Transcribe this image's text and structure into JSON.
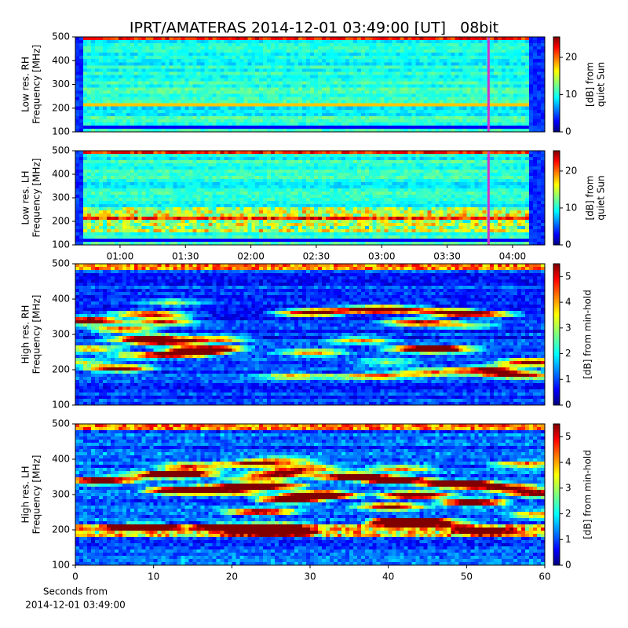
{
  "chart_data": [
    {
      "type": "heatmap",
      "title": "IPRT/AMATERAS 2014-12-01 03:49:00 [UT]   08bit",
      "ylabel": [
        "Low res. RH",
        "Frequency [MHz]"
      ],
      "ylim": [
        100,
        500
      ],
      "yticks": [
        100,
        200,
        300,
        400,
        500
      ],
      "xlim": [
        39.5,
        254.8
      ],
      "marker_x": 229,
      "marker_color": "#cc33cc",
      "colorbar": {
        "label": [
          "[dB] from",
          "quiet Sun"
        ],
        "lim": [
          0,
          25.5
        ],
        "ticks": [
          0,
          10,
          20
        ]
      }
    },
    {
      "type": "heatmap",
      "ylabel": [
        "Low res. LH",
        "Frequency [MHz]"
      ],
      "ylim": [
        100,
        500
      ],
      "yticks": [
        100,
        200,
        300,
        400,
        500
      ],
      "xlim": [
        39.5,
        254.8
      ],
      "marker_x": 229,
      "marker_color": "#cc33cc",
      "xticks": [
        {
          "value": 60,
          "label": "01:00"
        },
        {
          "value": 90,
          "label": "01:30"
        },
        {
          "value": 120,
          "label": "02:00"
        },
        {
          "value": 150,
          "label": "02:30"
        },
        {
          "value": 180,
          "label": "03:00"
        },
        {
          "value": 210,
          "label": "03:30"
        },
        {
          "value": 240,
          "label": "04:00"
        }
      ],
      "colorbar": {
        "label": [
          "[dB] from",
          "quiet Sun"
        ],
        "lim": [
          0,
          25.5
        ],
        "ticks": [
          0,
          10,
          20
        ]
      }
    },
    {
      "type": "heatmap",
      "ylabel": [
        "High res. RH",
        "Frequency [MHz]"
      ],
      "ylim": [
        100,
        500
      ],
      "yticks": [
        100,
        200,
        300,
        400,
        500
      ],
      "xlim": [
        0,
        60
      ],
      "colorbar": {
        "label": [
          "[dB] from min-hold"
        ],
        "lim": [
          0,
          5.5
        ],
        "ticks": [
          0,
          1,
          2,
          3,
          4,
          5
        ]
      }
    },
    {
      "type": "heatmap",
      "ylabel": [
        "High res. LH",
        "Frequency [MHz]"
      ],
      "ylim": [
        100,
        500
      ],
      "yticks": [
        100,
        200,
        300,
        400,
        500
      ],
      "xlim": [
        0,
        60
      ],
      "xticks": [
        0,
        10,
        20,
        30,
        40,
        50,
        60
      ],
      "xlabel": [
        "Seconds from",
        "2014-12-01 03:49:00"
      ],
      "colorbar": {
        "label": [
          "[dB] from min-hold"
        ],
        "lim": [
          0,
          5.5
        ],
        "ticks": [
          0,
          1,
          2,
          3,
          4,
          5
        ]
      }
    }
  ]
}
